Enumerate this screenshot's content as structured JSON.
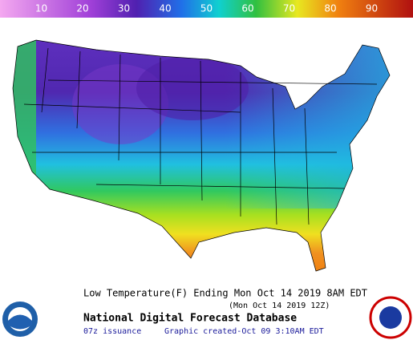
{
  "legend": {
    "ticks": [
      10,
      20,
      30,
      40,
      50,
      60,
      70,
      80,
      90
    ]
  },
  "footer": {
    "title_line": "Low Temperature(F) Ending Mon Oct 14 2019  8AM EDT",
    "subtitle_line": "(Mon Oct 14 2019 12Z)",
    "database": "National Digital Forecast Database",
    "issuance": "07z issuance",
    "created": "Graphic created-Oct 09  3:10AM EDT"
  }
}
